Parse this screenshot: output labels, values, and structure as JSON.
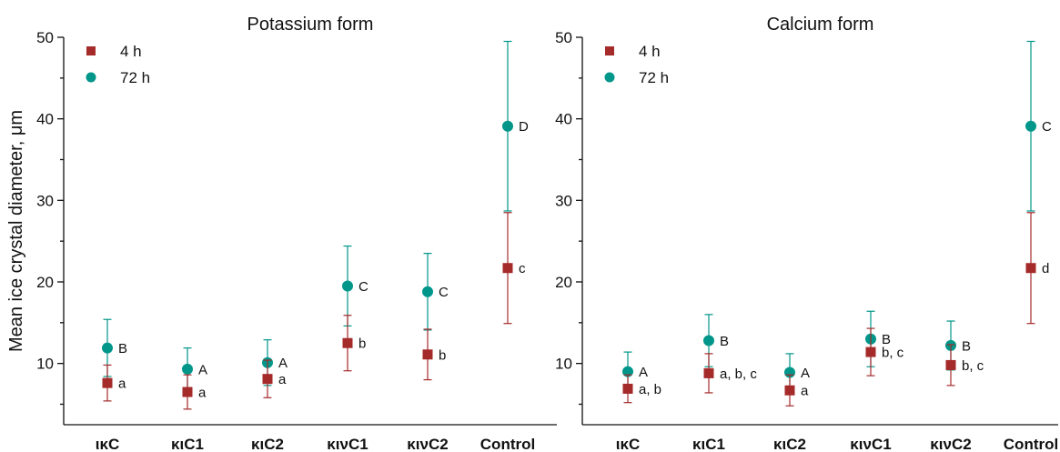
{
  "chart_data": [
    {
      "type": "scatter",
      "title": "Potassium form",
      "xlabel": "",
      "ylabel": "Mean ice crystal diameter, μm",
      "categories": [
        "ικC",
        "κιC1",
        "κιC2",
        "κινC1",
        "κινC2",
        "Control"
      ],
      "yticks": [
        "10",
        "20",
        "30",
        "40",
        "50"
      ],
      "ylim": [
        3,
        50
      ],
      "grid": false,
      "legend_position": "top-left",
      "series": [
        {
          "name": "4 h",
          "marker": "square",
          "color": "#a52a2a",
          "values": [
            7.6,
            6.5,
            8.1,
            12.5,
            11.1,
            21.7
          ],
          "errors": [
            2.2,
            2.1,
            2.3,
            3.4,
            3.1,
            6.8
          ],
          "labels": [
            "a",
            "a",
            "a",
            "b",
            "b",
            "c"
          ]
        },
        {
          "name": "72 h",
          "marker": "circle",
          "color": "#00968a",
          "values": [
            11.9,
            9.3,
            10.1,
            19.5,
            18.8,
            39.1
          ],
          "errors": [
            3.5,
            2.6,
            2.8,
            4.9,
            4.7,
            10.4
          ],
          "labels": [
            "B",
            "A",
            "A",
            "C",
            "C",
            "D"
          ]
        }
      ]
    },
    {
      "type": "scatter",
      "title": "Calcium form",
      "xlabel": "",
      "ylabel": "",
      "categories": [
        "ικC",
        "κιC1",
        "κιC2",
        "κινC1",
        "κινC2",
        "Control"
      ],
      "yticks": [
        "10",
        "20",
        "30",
        "40",
        "50"
      ],
      "ylim": [
        3,
        50
      ],
      "grid": false,
      "legend_position": "top-left",
      "series": [
        {
          "name": "4 h",
          "marker": "square",
          "color": "#a52a2a",
          "values": [
            6.9,
            8.8,
            6.7,
            11.4,
            9.8,
            21.7
          ],
          "errors": [
            1.7,
            2.4,
            1.9,
            2.9,
            2.5,
            6.8
          ],
          "labels": [
            "a, b",
            "a, b, c",
            "a",
            "b, c",
            "b, c",
            "d"
          ]
        },
        {
          "name": "72 h",
          "marker": "circle",
          "color": "#00968a",
          "values": [
            9.0,
            12.8,
            8.9,
            13.0,
            12.2,
            39.1
          ],
          "errors": [
            2.4,
            3.2,
            2.3,
            3.4,
            3.0,
            10.4
          ],
          "labels": [
            "A",
            "B",
            "A",
            "B",
            "B",
            "C"
          ]
        }
      ]
    }
  ]
}
